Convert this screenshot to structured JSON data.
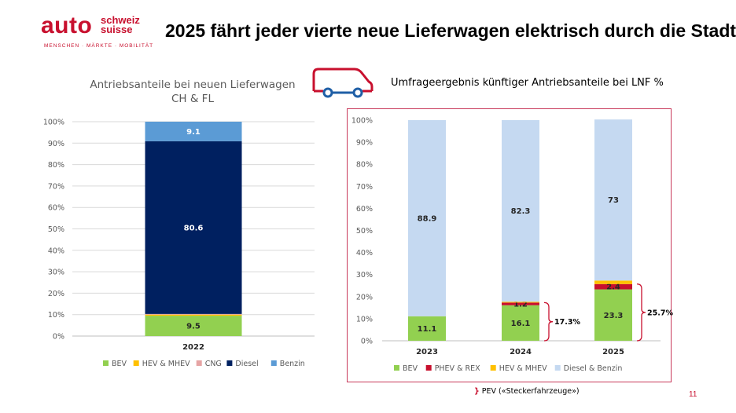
{
  "header": {
    "logo_auto": "auto",
    "logo_schweiz": "schweiz",
    "logo_suisse": "suisse",
    "logo_tagline": "MENSCHEN · MÄRKTE · MOBILITÄT",
    "title": "2025 fährt jeder vierte neue Lieferwagen elektrisch durch die Stadt"
  },
  "colors": {
    "BEV": "#92d050",
    "HEV & MHEV": "#ffc000",
    "CNG": "#e6a4a4",
    "Diesel": "#002060",
    "Benzin": "#5b9bd5",
    "PHEV & REX": "#c8102e",
    "Diesel & Benzin": "#c5d9f1",
    "accent": "#c8102e"
  },
  "icon": "van-icon",
  "chart_data": [
    {
      "type": "bar",
      "stacked": true,
      "title": "Antriebsanteile bei neuen Lieferwagen",
      "subtitle": "CH & FL",
      "categories": [
        "2022"
      ],
      "yticks": [
        "0%",
        "10%",
        "20%",
        "30%",
        "40%",
        "50%",
        "60%",
        "70%",
        "80%",
        "90%",
        "100%"
      ],
      "ylim": [
        0,
        100
      ],
      "grid": true,
      "legend_position": "bottom",
      "series": [
        {
          "name": "BEV",
          "values": [
            9.5
          ],
          "labels": [
            "9.5"
          ]
        },
        {
          "name": "HEV & MHEV",
          "values": [
            0.5
          ],
          "labels": [
            ""
          ]
        },
        {
          "name": "CNG",
          "values": [
            0.3
          ],
          "labels": [
            ""
          ]
        },
        {
          "name": "Diesel",
          "values": [
            80.6
          ],
          "labels": [
            "80.6"
          ]
        },
        {
          "name": "Benzin",
          "values": [
            9.1
          ],
          "labels": [
            "9.1"
          ]
        }
      ]
    },
    {
      "type": "bar",
      "stacked": true,
      "title": "Umfrageergebnis künftiger Antriebsanteile bei LNF %",
      "categories": [
        "2023",
        "2024",
        "2025"
      ],
      "yticks": [
        "0%",
        "10%",
        "20%",
        "30%",
        "40%",
        "50%",
        "60%",
        "70%",
        "80%",
        "90%",
        "100%"
      ],
      "ylim": [
        0,
        100
      ],
      "grid": false,
      "legend_position": "bottom",
      "series": [
        {
          "name": "BEV",
          "values": [
            11.1,
            16.1,
            23.3
          ],
          "labels": [
            "11.1",
            "16.1",
            "23.3"
          ]
        },
        {
          "name": "PHEV & REX",
          "values": [
            0,
            1.2,
            2.4
          ],
          "labels": [
            "",
            "1.2",
            "2.4"
          ]
        },
        {
          "name": "HEV & MHEV",
          "values": [
            0,
            0.4,
            1.6
          ],
          "labels": [
            "",
            "",
            ""
          ]
        },
        {
          "name": "Diesel & Benzin",
          "values": [
            88.9,
            82.3,
            73
          ],
          "labels": [
            "88.9",
            "82.3",
            "73"
          ]
        }
      ],
      "annotations": [
        {
          "category": "2024",
          "label": "17.3%"
        },
        {
          "category": "2025",
          "label": "25.7%"
        }
      ]
    }
  ],
  "pev_note": "PEV («Steckerfahrzeuge»)",
  "page_number": "11"
}
